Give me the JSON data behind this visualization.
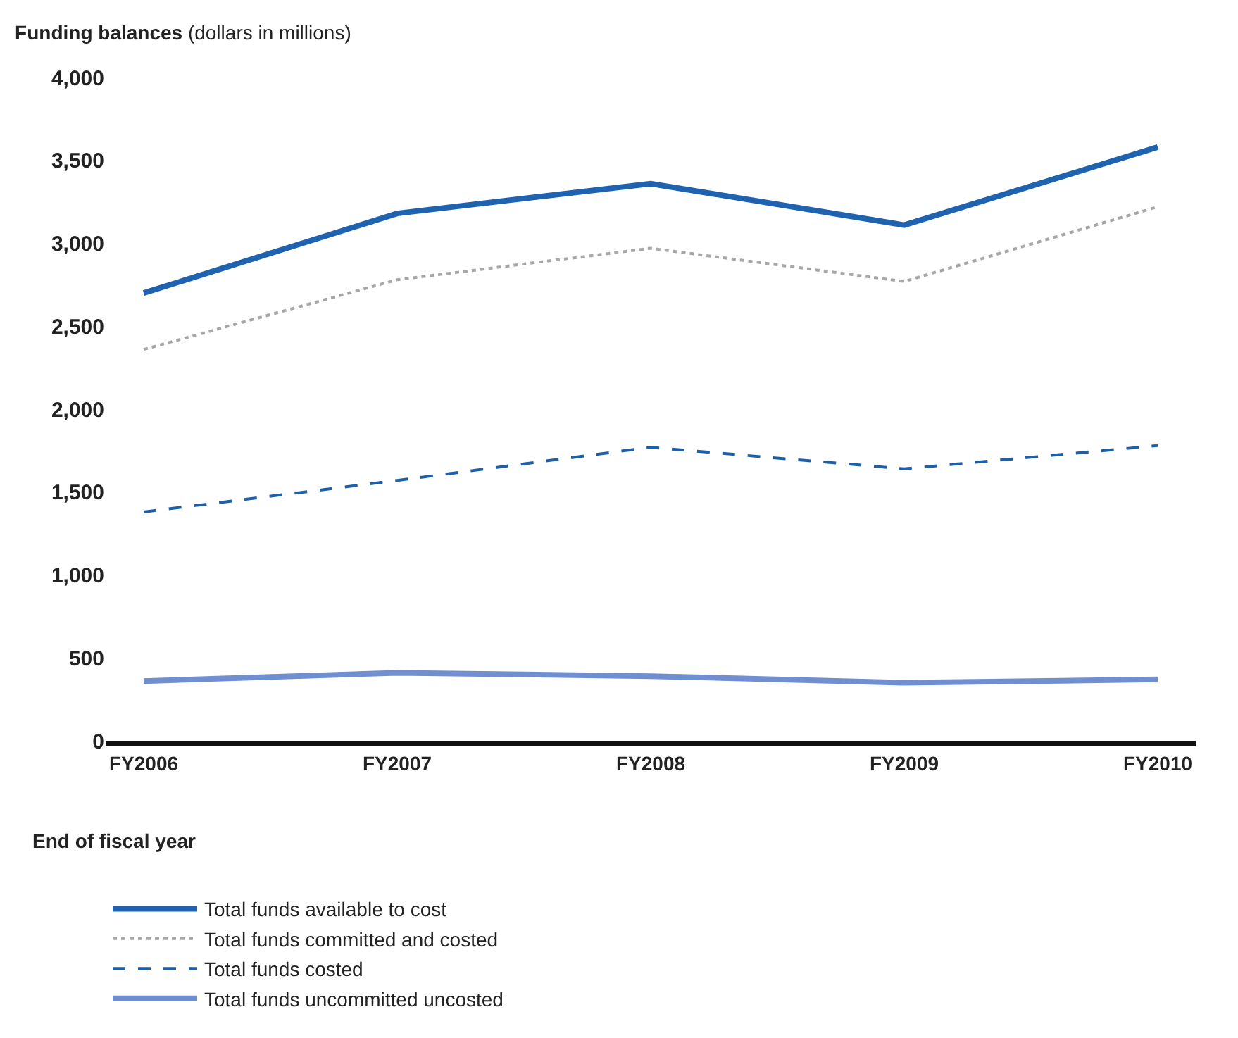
{
  "chart_data": {
    "type": "line",
    "title": "Funding balances",
    "subtitle": "(dollars in millions)",
    "xlabel": "End of fiscal year",
    "categories": [
      "FY2006",
      "FY2007",
      "FY2008",
      "FY2009",
      "FY2010"
    ],
    "series": [
      {
        "name": "Total funds available to cost",
        "color": "#1f63b0",
        "line_style": "solid",
        "values": [
          2700,
          3180,
          3360,
          3110,
          3580
        ]
      },
      {
        "name": "Total funds committed and costed",
        "color": "#a6a6a6",
        "line_style": "dotted",
        "values": [
          2360,
          2780,
          2970,
          2770,
          3220
        ]
      },
      {
        "name": "Total funds costed",
        "color": "#1f5fa8",
        "line_style": "dashed",
        "values": [
          1380,
          1570,
          1770,
          1640,
          1780
        ]
      },
      {
        "name": "Total funds uncommitted uncosted",
        "color": "#6f8fd0",
        "line_style": "solid",
        "values": [
          360,
          410,
          390,
          350,
          370
        ]
      }
    ],
    "ylim": [
      0,
      4000
    ],
    "yticks": [
      {
        "value": 0,
        "label": "0"
      },
      {
        "value": 500,
        "label": "500"
      },
      {
        "value": 1000,
        "label": "1,000"
      },
      {
        "value": 1500,
        "label": "1,500"
      },
      {
        "value": 2000,
        "label": "2,000"
      },
      {
        "value": 2500,
        "label": "2,500"
      },
      {
        "value": 3000,
        "label": "3,000"
      },
      {
        "value": 3500,
        "label": "3,500"
      },
      {
        "value": 4000,
        "label": "4,000"
      }
    ],
    "legend": "bottom",
    "marker": "none"
  }
}
